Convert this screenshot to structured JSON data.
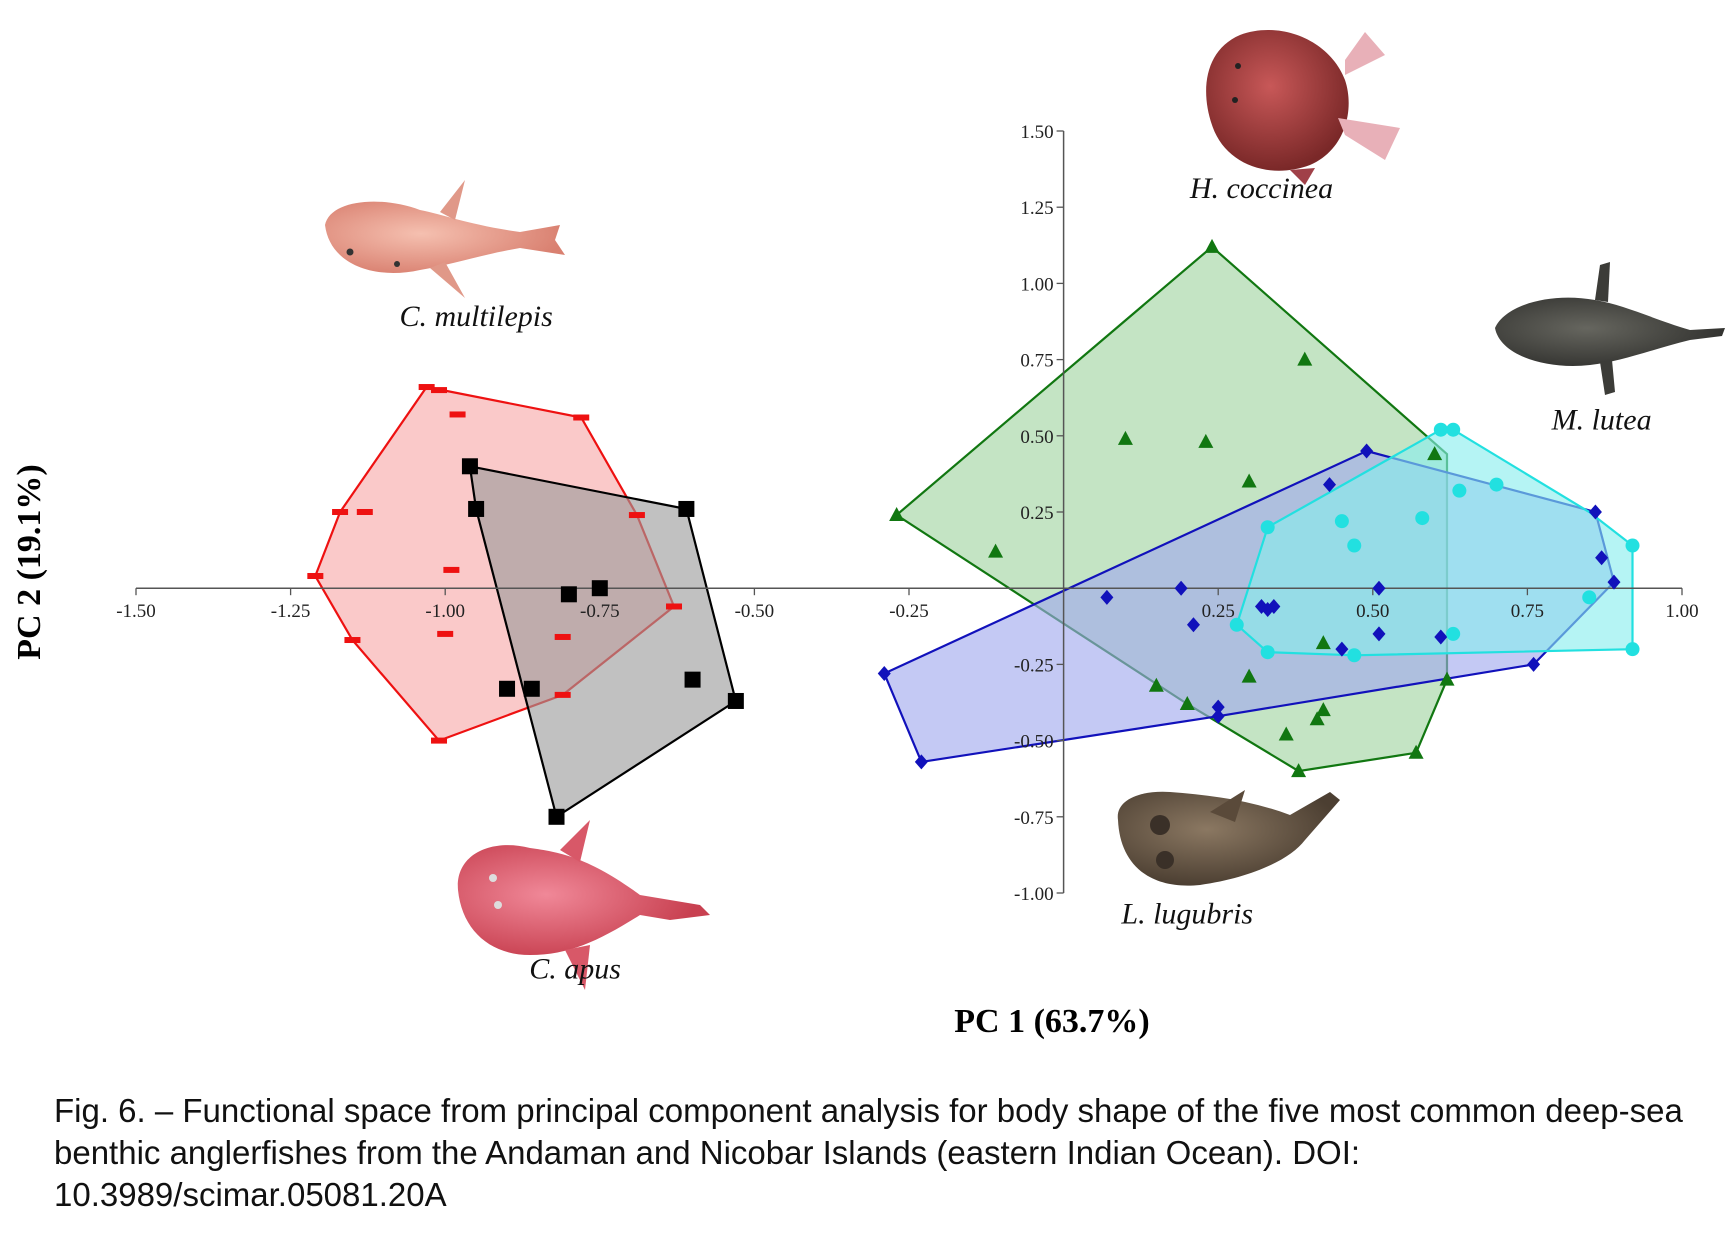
{
  "figure": {
    "caption": "Fig. 6. – Functional space from principal component analysis for body shape of the five most common deep-sea benthic anglerfishes from the Andaman and Nicobar Islands (eastern Indian Ocean). DOI: 10.3989/scimar.05081.20A"
  },
  "chart_data": {
    "type": "scatter",
    "xlabel": "PC 1 (63.7%)",
    "ylabel": "PC 2 (19.1%)",
    "xlim": [
      -1.5,
      1.0
    ],
    "ylim": [
      -1.0,
      1.5
    ],
    "x_ticks": [
      "-1.50",
      "-1.25",
      "-1.00",
      "-0.75",
      "-0.50",
      "-0.25",
      "0.25",
      "0.50",
      "0.75",
      "1.00"
    ],
    "y_ticks": [
      "1.50",
      "1.25",
      "1.00",
      "0.75",
      "0.50",
      "0.25",
      "-0.25",
      "-0.50",
      "-0.75",
      "-1.00"
    ],
    "grid": false,
    "series": [
      {
        "name": "C. multilepis",
        "marker": "dash",
        "color": "#ee1111",
        "fill": "#f7a8a8",
        "points": [
          [
            -1.03,
            0.66
          ],
          [
            -1.01,
            0.65
          ],
          [
            -0.98,
            0.57
          ],
          [
            -0.78,
            0.56
          ],
          [
            -1.17,
            0.25
          ],
          [
            -1.13,
            0.25
          ],
          [
            -1.21,
            0.04
          ],
          [
            -0.99,
            0.06
          ],
          [
            -0.69,
            0.24
          ],
          [
            -0.63,
            -0.06
          ],
          [
            -1.15,
            -0.17
          ],
          [
            -1.0,
            -0.15
          ],
          [
            -0.81,
            -0.16
          ],
          [
            -0.81,
            -0.35
          ],
          [
            -1.01,
            -0.5
          ]
        ],
        "hull": [
          [
            -1.03,
            0.66
          ],
          [
            -0.78,
            0.56
          ],
          [
            -0.69,
            0.24
          ],
          [
            -0.63,
            -0.06
          ],
          [
            -0.81,
            -0.35
          ],
          [
            -1.01,
            -0.5
          ],
          [
            -1.15,
            -0.17
          ],
          [
            -1.21,
            0.04
          ],
          [
            -1.17,
            0.25
          ]
        ]
      },
      {
        "name": "C. apus",
        "marker": "square",
        "color": "#000000",
        "fill": "#9b9b9b",
        "points": [
          [
            -0.96,
            0.4
          ],
          [
            -0.95,
            0.26
          ],
          [
            -0.61,
            0.26
          ],
          [
            -0.8,
            -0.02
          ],
          [
            -0.75,
            0.0
          ],
          [
            -0.6,
            -0.3
          ],
          [
            -0.53,
            -0.37
          ],
          [
            -0.9,
            -0.33
          ],
          [
            -0.86,
            -0.33
          ],
          [
            -0.82,
            -0.75
          ]
        ],
        "hull": [
          [
            -0.96,
            0.4
          ],
          [
            -0.61,
            0.26
          ],
          [
            -0.53,
            -0.37
          ],
          [
            -0.82,
            -0.75
          ],
          [
            -0.95,
            0.26
          ]
        ]
      },
      {
        "name": "H. coccinea",
        "marker": "triangle",
        "color": "#117711",
        "fill": "#9fd39f",
        "points": [
          [
            0.24,
            1.12
          ],
          [
            0.39,
            0.75
          ],
          [
            0.1,
            0.49
          ],
          [
            0.23,
            0.48
          ],
          [
            0.6,
            0.44
          ],
          [
            0.3,
            0.35
          ],
          [
            -0.27,
            0.24
          ],
          [
            -0.11,
            0.12
          ],
          [
            0.42,
            -0.18
          ],
          [
            0.3,
            -0.29
          ],
          [
            0.15,
            -0.32
          ],
          [
            0.2,
            -0.38
          ],
          [
            0.42,
            -0.4
          ],
          [
            0.41,
            -0.43
          ],
          [
            0.36,
            -0.48
          ],
          [
            0.38,
            -0.6
          ],
          [
            0.57,
            -0.54
          ],
          [
            0.62,
            -0.3
          ]
        ],
        "hull": [
          [
            0.24,
            1.12
          ],
          [
            0.62,
            0.44
          ],
          [
            0.62,
            -0.3
          ],
          [
            0.57,
            -0.54
          ],
          [
            0.38,
            -0.6
          ],
          [
            0.2,
            -0.38
          ],
          [
            -0.27,
            0.24
          ]
        ]
      },
      {
        "name": "L. lugubris",
        "marker": "diamond",
        "color": "#1111bb",
        "fill": "#9fa8ee",
        "points": [
          [
            0.49,
            0.45
          ],
          [
            0.43,
            0.34
          ],
          [
            0.86,
            0.25
          ],
          [
            0.87,
            0.1
          ],
          [
            0.89,
            0.02
          ],
          [
            0.07,
            -0.03
          ],
          [
            0.19,
            0.0
          ],
          [
            0.51,
            0.0
          ],
          [
            0.32,
            -0.06
          ],
          [
            0.34,
            -0.06
          ],
          [
            0.33,
            -0.07
          ],
          [
            0.21,
            -0.12
          ],
          [
            0.51,
            -0.15
          ],
          [
            0.61,
            -0.16
          ],
          [
            0.45,
            -0.2
          ],
          [
            0.76,
            -0.25
          ],
          [
            -0.29,
            -0.28
          ],
          [
            0.25,
            -0.39
          ],
          [
            0.25,
            -0.42
          ],
          [
            -0.23,
            -0.57
          ]
        ],
        "hull": [
          [
            0.49,
            0.45
          ],
          [
            0.86,
            0.25
          ],
          [
            0.89,
            0.02
          ],
          [
            0.76,
            -0.25
          ],
          [
            0.25,
            -0.42
          ],
          [
            -0.23,
            -0.57
          ],
          [
            -0.29,
            -0.28
          ]
        ]
      },
      {
        "name": "M. lutea",
        "marker": "circle",
        "color": "#22e0e0",
        "fill": "#88eeee",
        "points": [
          [
            0.61,
            0.52
          ],
          [
            0.63,
            0.52
          ],
          [
            0.7,
            0.34
          ],
          [
            0.64,
            0.32
          ],
          [
            0.58,
            0.23
          ],
          [
            0.45,
            0.22
          ],
          [
            0.33,
            0.2
          ],
          [
            0.47,
            0.14
          ],
          [
            0.92,
            0.14
          ],
          [
            0.85,
            -0.03
          ],
          [
            0.28,
            -0.12
          ],
          [
            0.63,
            -0.15
          ],
          [
            0.92,
            -0.2
          ],
          [
            0.33,
            -0.21
          ],
          [
            0.47,
            -0.22
          ]
        ],
        "hull": [
          [
            0.61,
            0.52
          ],
          [
            0.63,
            0.52
          ],
          [
            0.85,
            0.25
          ],
          [
            0.92,
            0.14
          ],
          [
            0.92,
            -0.2
          ],
          [
            0.47,
            -0.22
          ],
          [
            0.33,
            -0.21
          ],
          [
            0.28,
            -0.12
          ],
          [
            0.33,
            0.2
          ]
        ]
      }
    ],
    "species_labels": [
      {
        "text": "C. multilepis",
        "pos": [
          -0.95,
          0.86
        ]
      },
      {
        "text": "C. apus",
        "pos": [
          -0.79,
          -1.28
        ]
      },
      {
        "text": "H. coccinea",
        "pos": [
          0.32,
          1.28
        ]
      },
      {
        "text": "L. lugubris",
        "pos": [
          0.2,
          -1.1
        ]
      },
      {
        "text": "M. lutea",
        "pos": [
          0.87,
          0.52
        ]
      }
    ]
  },
  "illustrations": [
    {
      "name": "c-multilepis-fish-photo",
      "color": "#e8a090"
    },
    {
      "name": "c-apus-fish-photo",
      "color": "#e06070"
    },
    {
      "name": "h-coccinea-fish-photo",
      "color": "#a83a3a"
    },
    {
      "name": "l-lugubris-fish-photo",
      "color": "#6b5a48"
    },
    {
      "name": "m-lutea-fish-photo",
      "color": "#4a4a45"
    }
  ]
}
